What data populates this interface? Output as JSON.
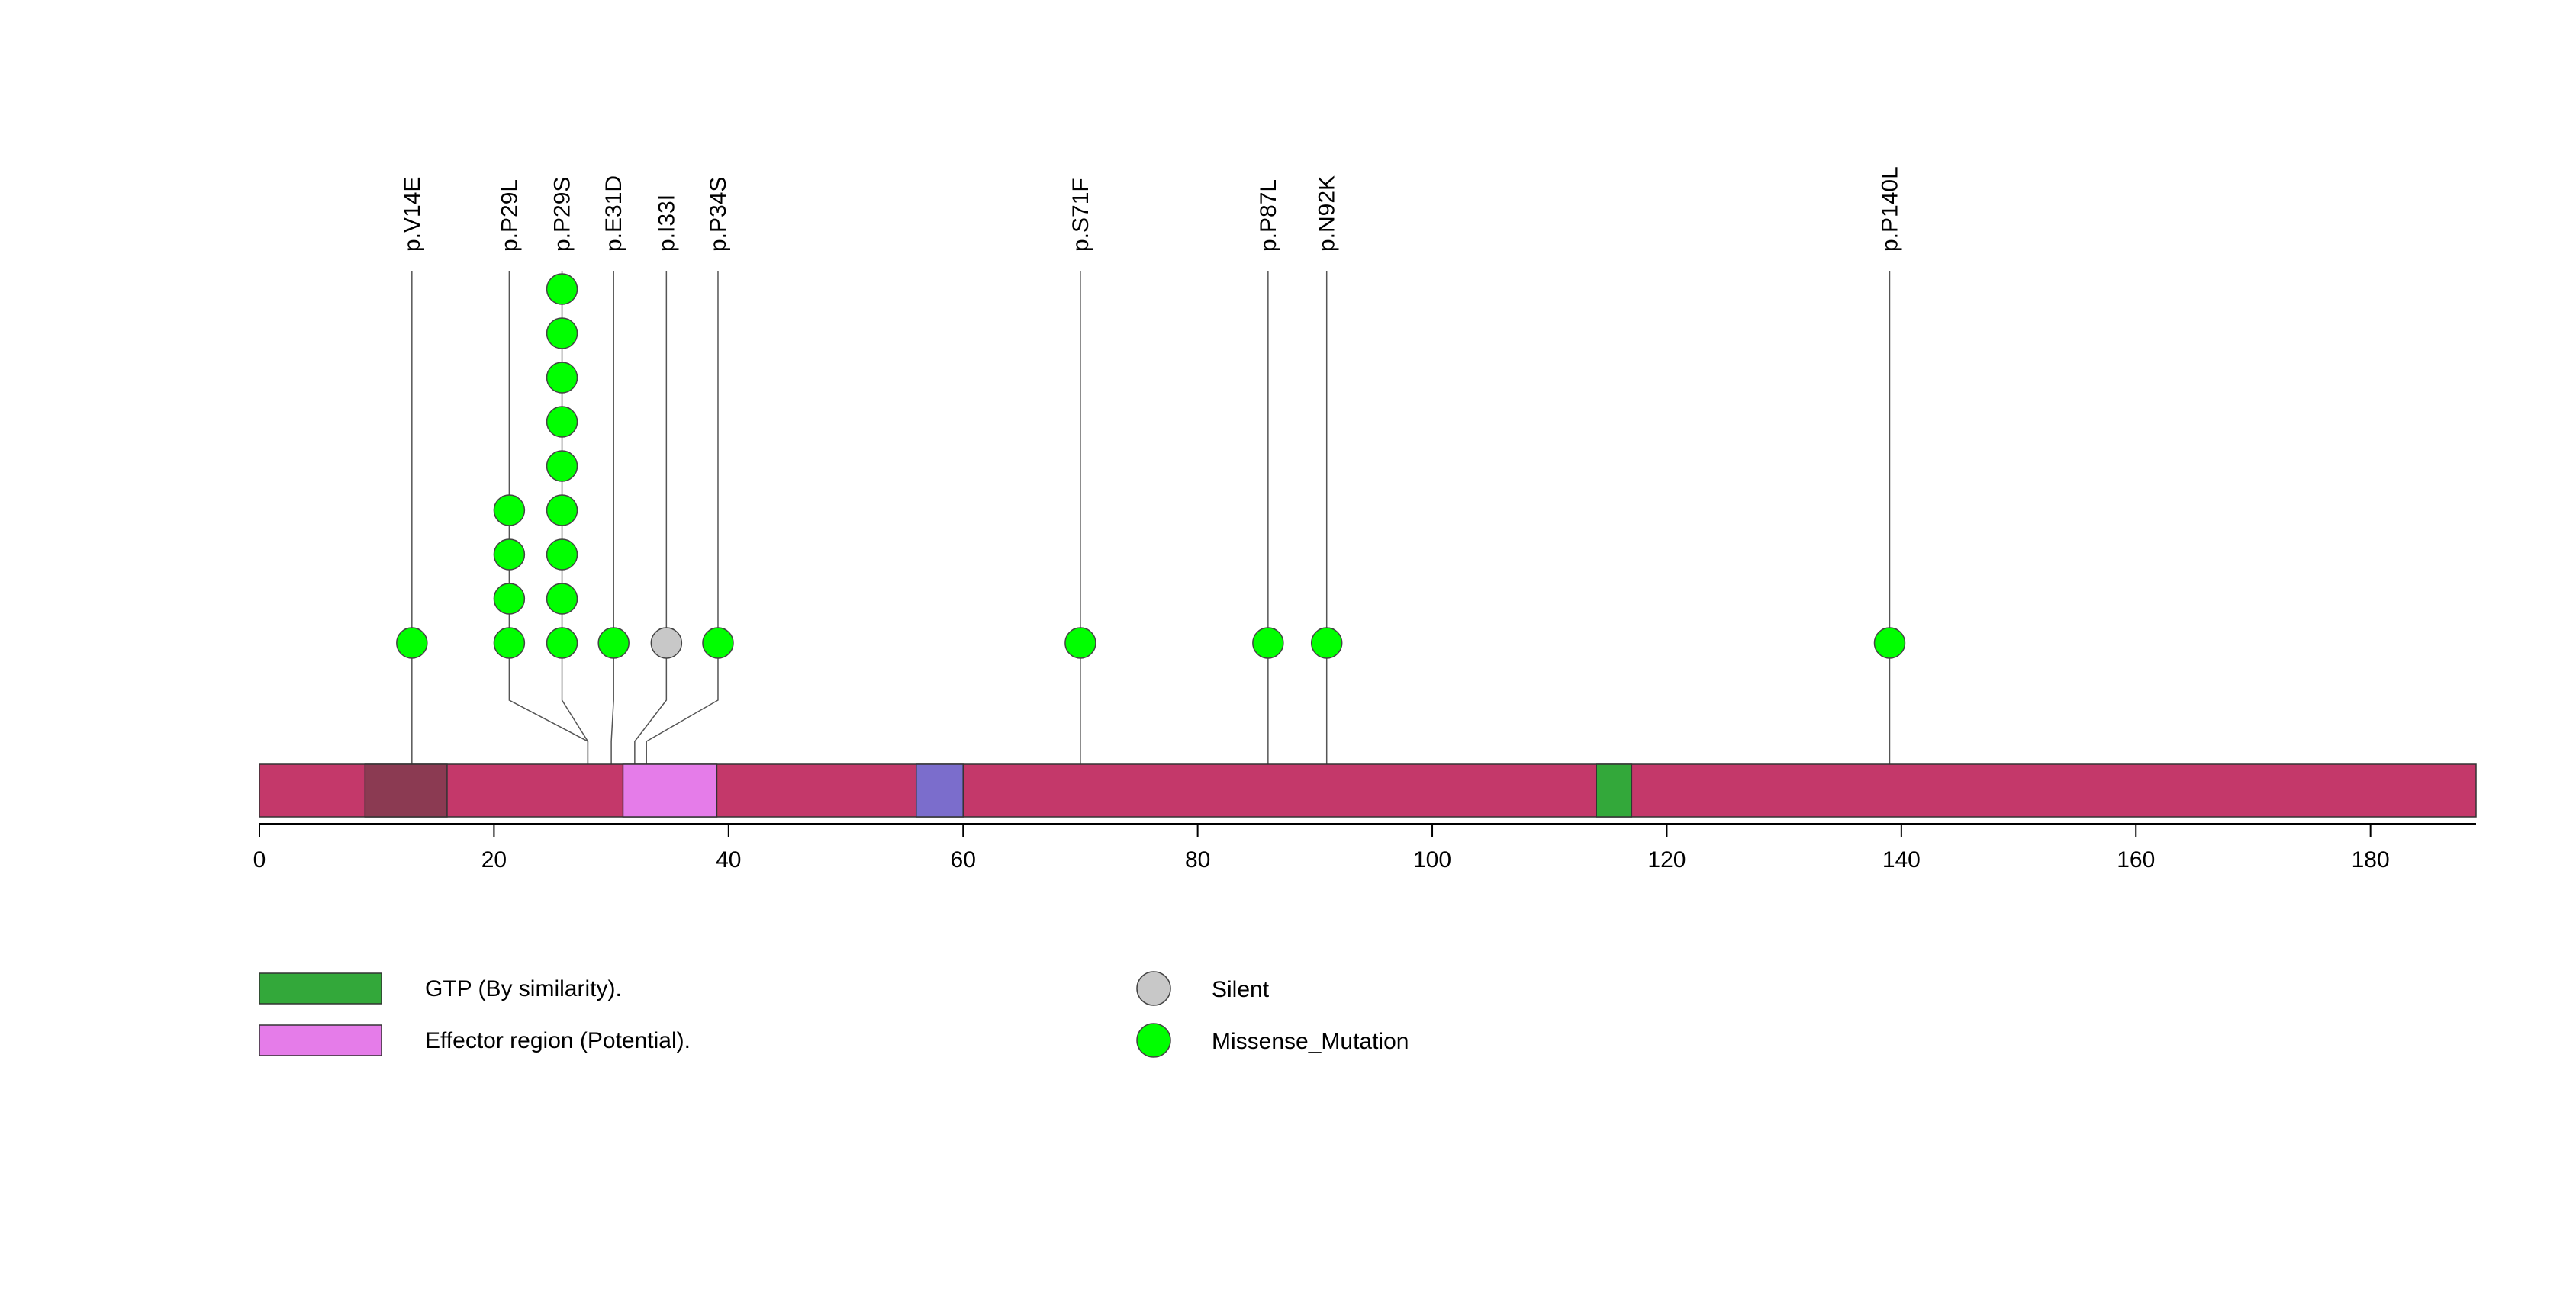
{
  "chart_data": {
    "type": "lollipop",
    "protein_length": 189,
    "axis": {
      "xlim": [
        0,
        189
      ],
      "ticks": [
        0,
        20,
        40,
        60,
        80,
        100,
        120,
        140,
        160,
        180
      ],
      "tick_labels": [
        "0",
        "20",
        "40",
        "60",
        "80",
        "100",
        "120",
        "140",
        "160",
        "180"
      ]
    },
    "colors": {
      "backbone": "#c4386a",
      "Missense_Mutation": "#00ff00",
      "Silent": "#c8c8c8",
      "stem": "#555555"
    },
    "domains": [
      {
        "start": 9,
        "end": 16,
        "color": "#8b3a52"
      },
      {
        "start": 31,
        "end": 39,
        "color": "#e57ce9"
      },
      {
        "start": 56,
        "end": 60,
        "color": "#7b6dcc"
      },
      {
        "start": 114,
        "end": 117,
        "color": "#33a83a"
      }
    ],
    "mutations": [
      {
        "label": "p.V14E",
        "position": 13,
        "count": 1,
        "type": "Missense_Mutation",
        "x": 13
      },
      {
        "label": "p.P29L",
        "position": 28,
        "count": 4,
        "type": "Missense_Mutation",
        "x": 21.3
      },
      {
        "label": "p.P29S",
        "position": 28,
        "count": 9,
        "type": "Missense_Mutation",
        "x": 25.8
      },
      {
        "label": "p.E31D",
        "position": 30,
        "count": 1,
        "type": "Missense_Mutation",
        "x": 30.2
      },
      {
        "label": "p.I33I",
        "position": 32,
        "count": 1,
        "type": "Silent",
        "x": 34.7
      },
      {
        "label": "p.P34S",
        "position": 33,
        "count": 1,
        "type": "Missense_Mutation",
        "x": 39.1
      },
      {
        "label": "p.S71F",
        "position": 70,
        "count": 1,
        "type": "Missense_Mutation",
        "x": 70
      },
      {
        "label": "p.P87L",
        "position": 86,
        "count": 1,
        "type": "Missense_Mutation",
        "x": 86
      },
      {
        "label": "p.N92K",
        "position": 91,
        "count": 1,
        "type": "Missense_Mutation",
        "x": 91
      },
      {
        "label": "p.P140L",
        "position": 139,
        "count": 1,
        "type": "Missense_Mutation",
        "x": 139
      }
    ],
    "legend": {
      "domains": [
        {
          "label": "GTP (By similarity).",
          "color": "#33a83a"
        },
        {
          "label": "Effector region (Potential).",
          "color": "#e57ce9"
        }
      ],
      "mutation_types": [
        {
          "label": "Silent",
          "color": "#c8c8c8"
        },
        {
          "label": "Missense_Mutation",
          "color": "#00ff00"
        }
      ]
    }
  }
}
